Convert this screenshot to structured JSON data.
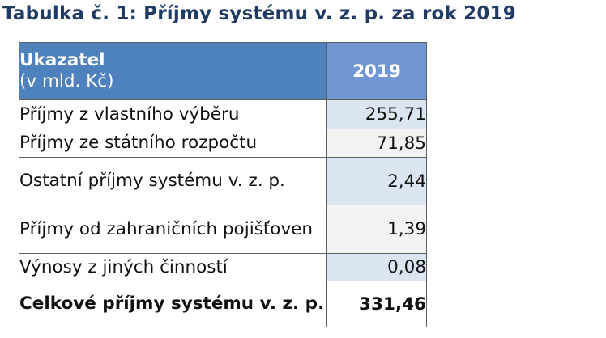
{
  "title": "Tabulka č. 1: Příjmy systému v. z. p. za rok 2019",
  "table": {
    "header": {
      "label_line1": "Ukazatel",
      "label_line2": "(v mld. Kč)",
      "year": "2019"
    },
    "rows": [
      {
        "label": "Příjmy z vlastního výběru",
        "value": "255,71"
      },
      {
        "label": "Příjmy ze státního rozpočtu",
        "value": "71,85"
      },
      {
        "label": "Ostatní příjmy systému v. z. p.",
        "value": "2,44"
      },
      {
        "label": "Příjmy od zahraničních pojišťoven",
        "value": "1,39"
      },
      {
        "label": "Výnosy z jiných činností",
        "value": "0,08"
      }
    ],
    "total": {
      "label": "Celkové příjmy systému v. z. p.",
      "value": "331,46"
    }
  },
  "colors": {
    "title": "#1f3b64",
    "header_bg": "#4f81bd",
    "header_year_bg": "#6f96d0",
    "value_shade": "#dbe5f1",
    "border": "#5f5f5f"
  }
}
